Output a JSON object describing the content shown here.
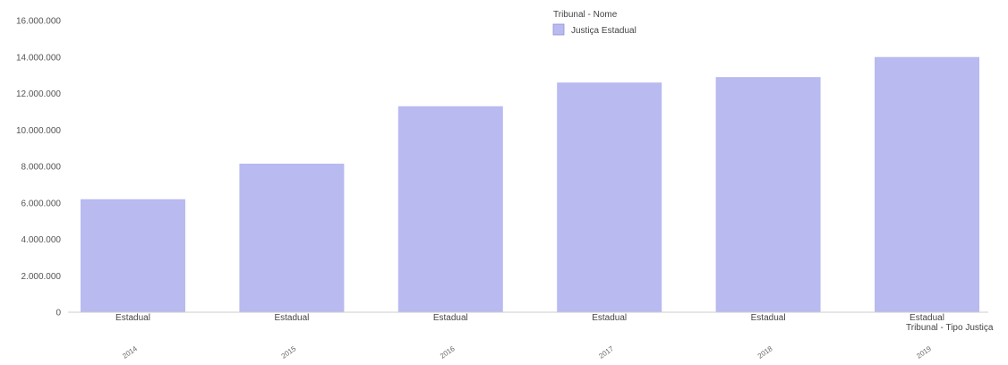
{
  "chart_data": {
    "type": "bar",
    "categories": [
      "2014",
      "2015",
      "2016",
      "2017",
      "2018",
      "2019"
    ],
    "category_labels": [
      "Estadual",
      "Estadual",
      "Estadual",
      "Estadual",
      "Estadual",
      "Estadual"
    ],
    "series": [
      {
        "name": "Justiça Estadual",
        "values": [
          6200000,
          8150000,
          11300000,
          12600000,
          12900000,
          14000000
        ],
        "color": "#b8baf0"
      }
    ],
    "xlabel": "Tribunal - Tipo Justiça",
    "ylabel": "",
    "ylim": [
      0,
      16000000
    ],
    "y_ticks": [
      "0",
      "2.000.000",
      "4.000.000",
      "6.000.000",
      "8.000.000",
      "10.000.000",
      "12.000.000",
      "14.000.000",
      "16.000.000"
    ],
    "legend": {
      "title": "Tribunal - Nome",
      "position": "top-center"
    },
    "grid": false
  }
}
